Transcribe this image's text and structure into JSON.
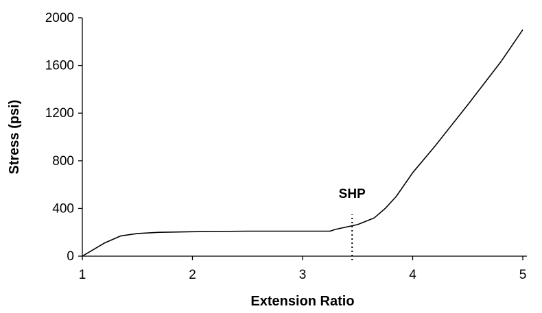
{
  "chart_data": {
    "type": "line",
    "title": "",
    "xlabel": "Extension Ratio",
    "ylabel": "Stress (psi)",
    "xlim": [
      1,
      5
    ],
    "ylim": [
      0,
      2000
    ],
    "xticks": [
      1,
      2,
      3,
      4,
      5
    ],
    "yticks": [
      0,
      400,
      800,
      1200,
      1600,
      2000
    ],
    "xtick_labels": [
      "1",
      "2",
      "3",
      "4",
      "5"
    ],
    "ytick_labels": [
      "0",
      "400",
      "800",
      "1200",
      "1600",
      "2000"
    ],
    "grid": false,
    "legend": "none",
    "line_color": "#000000",
    "series": [
      {
        "x": [
          1.0,
          1.1,
          1.2,
          1.35,
          1.5,
          1.7,
          2.0,
          2.5,
          3.0,
          3.25,
          3.3,
          3.5,
          3.65,
          3.75,
          3.85,
          4.0,
          4.2,
          4.5,
          4.8,
          5.0
        ],
        "y": [
          0,
          55,
          110,
          170,
          190,
          200,
          205,
          210,
          210,
          210,
          225,
          265,
          320,
          400,
          500,
          700,
          920,
          1270,
          1630,
          1900
        ]
      }
    ],
    "annotations": [
      {
        "text": "SHP",
        "x": 3.45,
        "style": "dotted-vertical-line",
        "y_from": 0,
        "y_to": 350
      }
    ]
  }
}
